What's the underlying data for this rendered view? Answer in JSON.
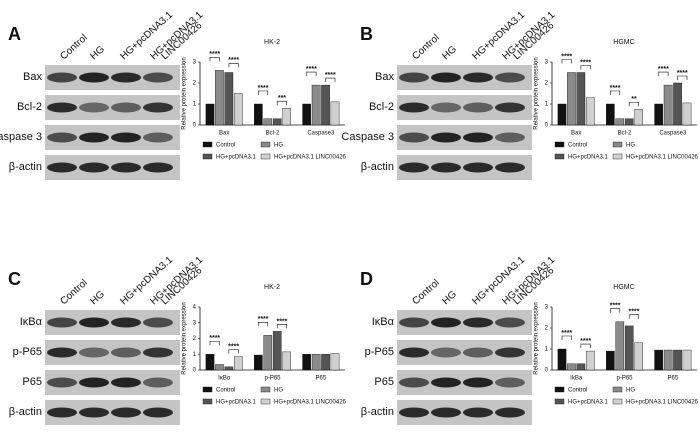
{
  "chart_data": [
    {
      "type": "bar",
      "panel": "A",
      "title": "HK-2",
      "y_label": "Relative protein expression",
      "lanes": [
        "Control",
        "HG",
        "HG+pcDNA3.1",
        [
          "HG+pcDNA3.1",
          "LINC00426"
        ]
      ],
      "blot_rows": [
        "Bax",
        "Bcl-2",
        "Caspase 3",
        "β-actin"
      ],
      "categories": [
        "Bax",
        "Bcl-2",
        "Caspase3"
      ],
      "series": [
        {
          "name": "Control",
          "color": "#111111",
          "values": [
            1,
            1,
            1
          ]
        },
        {
          "name": "HG",
          "color": "#8a8a8a",
          "values": [
            2.6,
            0.3,
            1.9
          ]
        },
        {
          "name": "HG+pcDNA3.1",
          "color": "#555555",
          "values": [
            2.5,
            0.3,
            1.9
          ]
        },
        {
          "name": "HG+pcDNA3.1 LINC00426",
          "color": "#d0d0d0",
          "values": [
            1.5,
            0.8,
            1.1
          ]
        }
      ],
      "significance": [
        [
          "****",
          "****"
        ],
        [
          "****",
          "***"
        ],
        [
          "****",
          "****"
        ]
      ],
      "ylim": [
        0,
        3
      ],
      "yticks": [
        0,
        1,
        2,
        3
      ]
    },
    {
      "type": "bar",
      "panel": "B",
      "title": "HGMC",
      "y_label": "Relative protein expression",
      "lanes": [
        "Control",
        "HG",
        "HG+pcDNA3.1",
        [
          "HG+pcDNA3.1",
          "LINC00426"
        ]
      ],
      "blot_rows": [
        "Bax",
        "Bcl-2",
        "Caspase 3",
        "β-actin"
      ],
      "categories": [
        "Bax",
        "Bcl-2",
        "Caspase3"
      ],
      "series": [
        {
          "name": "Control",
          "color": "#111111",
          "values": [
            1,
            1,
            1
          ]
        },
        {
          "name": "HG",
          "color": "#8a8a8a",
          "values": [
            2.5,
            0.3,
            1.9
          ]
        },
        {
          "name": "HG+pcDNA3.1",
          "color": "#555555",
          "values": [
            2.5,
            0.3,
            2
          ]
        },
        {
          "name": "HG+pcDNA3.1 LINC00426",
          "color": "#d0d0d0",
          "values": [
            1.3,
            0.75,
            1.05
          ]
        }
      ],
      "significance": [
        [
          "****",
          "****"
        ],
        [
          "****",
          "**"
        ],
        [
          "****",
          "****"
        ]
      ],
      "ylim": [
        0,
        3
      ],
      "yticks": [
        0,
        1,
        2,
        3
      ]
    },
    {
      "type": "bar",
      "panel": "C",
      "title": "HK-2",
      "y_label": "Relative protein expression",
      "lanes": [
        "Control",
        "HG",
        "HG+pcDNA3.1",
        [
          "HG+pcDNA3.1",
          "LINC00426"
        ]
      ],
      "blot_rows": [
        "IκBα",
        "p-P65",
        "P65",
        "β-actin"
      ],
      "categories": [
        "IκBα",
        "p-P65",
        "P65"
      ],
      "series": [
        {
          "name": "Control",
          "color": "#111111",
          "values": [
            1,
            0.95,
            1
          ]
        },
        {
          "name": "HG",
          "color": "#8a8a8a",
          "values": [
            0.35,
            2.2,
            1
          ]
        },
        {
          "name": "HG+pcDNA3.1",
          "color": "#555555",
          "values": [
            0.2,
            2.45,
            1
          ]
        },
        {
          "name": "HG+pcDNA3.1 LINC00426",
          "color": "#d0d0d0",
          "values": [
            0.85,
            1.15,
            1.05
          ]
        }
      ],
      "significance": [
        [
          "****",
          "****"
        ],
        [
          "****",
          "****"
        ],
        []
      ],
      "ylim": [
        0,
        4
      ],
      "yticks": [
        0,
        1,
        2,
        3,
        4
      ]
    },
    {
      "type": "bar",
      "panel": "D",
      "title": "HGMC",
      "y_label": "Relative protein expression",
      "lanes": [
        "Control",
        "HG",
        "HG+pcDNA3.1",
        [
          "HG+pcDNA3.1",
          "LINC00426"
        ]
      ],
      "blot_rows": [
        "IκBα",
        "p-P65",
        "P65",
        "β-actin"
      ],
      "categories": [
        "IkBa",
        "p-P65",
        "P65"
      ],
      "series": [
        {
          "name": "Control",
          "color": "#111111",
          "values": [
            1,
            0.9,
            0.95
          ]
        },
        {
          "name": "HG",
          "color": "#8a8a8a",
          "values": [
            0.3,
            2.3,
            0.95
          ]
        },
        {
          "name": "HG+pcDNA3.1",
          "color": "#555555",
          "values": [
            0.3,
            2.1,
            0.95
          ]
        },
        {
          "name": "HG+pcDNA3.1 LINC00426",
          "color": "#d0d0d0",
          "values": [
            0.9,
            1.3,
            0.95
          ]
        }
      ],
      "significance": [
        [
          "****",
          "****"
        ],
        [
          "****",
          "****"
        ],
        []
      ],
      "ylim": [
        0,
        3
      ],
      "yticks": [
        0,
        1,
        2,
        3
      ]
    }
  ]
}
